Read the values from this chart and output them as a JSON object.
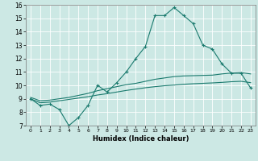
{
  "xlabel": "Humidex (Indice chaleur)",
  "xlim": [
    -0.5,
    23.5
  ],
  "ylim": [
    7,
    16
  ],
  "xticks": [
    0,
    1,
    2,
    3,
    4,
    5,
    6,
    7,
    8,
    9,
    10,
    11,
    12,
    13,
    14,
    15,
    16,
    17,
    18,
    19,
    20,
    21,
    22,
    23
  ],
  "yticks": [
    7,
    8,
    9,
    10,
    11,
    12,
    13,
    14,
    15,
    16
  ],
  "bg_color": "#cce8e4",
  "grid_color": "#ffffff",
  "line_color": "#1a7a6e",
  "lines": [
    {
      "x": [
        0,
        1,
        2,
        3,
        4,
        5,
        6,
        7,
        8,
        9,
        10,
        11,
        12,
        13,
        14,
        15,
        16,
        17,
        18,
        19,
        20,
        21,
        22,
        23
      ],
      "y": [
        9.0,
        8.5,
        8.6,
        8.2,
        7.0,
        7.6,
        8.5,
        10.0,
        9.5,
        10.2,
        11.0,
        12.0,
        12.9,
        15.2,
        15.2,
        15.8,
        15.2,
        14.6,
        13.0,
        12.7,
        11.6,
        10.9,
        10.9,
        9.8
      ],
      "marker": true,
      "linewidth": 0.8
    },
    {
      "x": [
        0,
        1,
        2,
        3,
        4,
        5,
        6,
        7,
        8,
        9,
        10,
        11,
        12,
        13,
        14,
        15,
        16,
        17,
        18,
        19,
        20,
        21,
        22,
        23
      ],
      "y": [
        9.1,
        8.85,
        8.9,
        9.0,
        9.1,
        9.25,
        9.4,
        9.6,
        9.75,
        9.9,
        10.05,
        10.15,
        10.3,
        10.45,
        10.55,
        10.65,
        10.7,
        10.72,
        10.74,
        10.76,
        10.85,
        10.92,
        10.95,
        10.85
      ],
      "marker": false,
      "linewidth": 0.8
    },
    {
      "x": [
        0,
        1,
        2,
        3,
        4,
        5,
        6,
        7,
        8,
        9,
        10,
        11,
        12,
        13,
        14,
        15,
        16,
        17,
        18,
        19,
        20,
        21,
        22,
        23
      ],
      "y": [
        9.0,
        8.7,
        8.75,
        8.85,
        8.95,
        9.05,
        9.15,
        9.28,
        9.38,
        9.5,
        9.62,
        9.72,
        9.82,
        9.9,
        9.97,
        10.02,
        10.08,
        10.12,
        10.15,
        10.18,
        10.22,
        10.27,
        10.3,
        10.2
      ],
      "marker": false,
      "linewidth": 0.8
    }
  ]
}
